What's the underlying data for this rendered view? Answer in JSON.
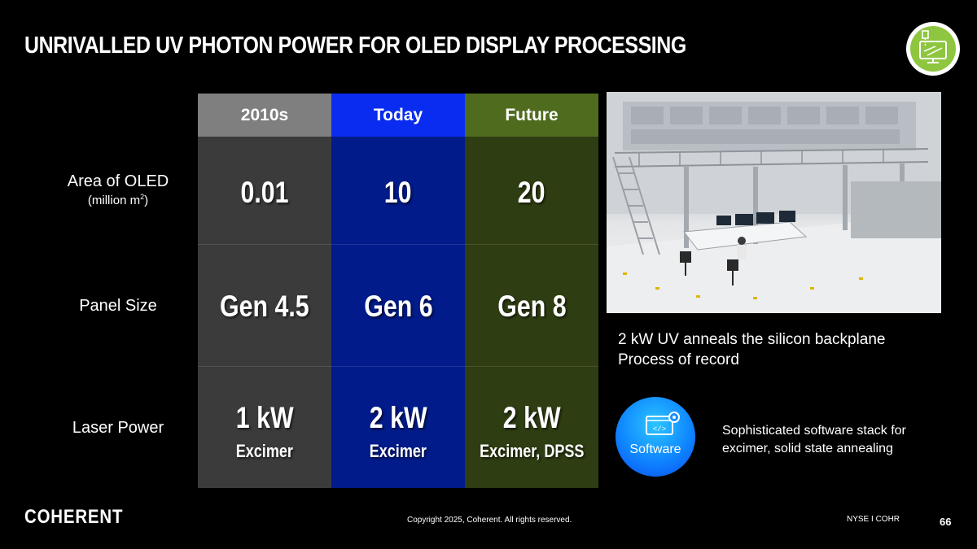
{
  "slide": {
    "title": "UNRIVALLED UV PHOTON POWER FOR OLED DISPLAY PROCESSING"
  },
  "table": {
    "columns": [
      "2010s",
      "Today",
      "Future"
    ],
    "column_colors": [
      "#7f7f7f",
      "#0a2cf0",
      "#4f6b1e"
    ],
    "rows": [
      {
        "label": "Area of OLED",
        "sublabel": "(million m",
        "sublabel_sup": "2",
        "sublabel_end": ")",
        "values": [
          "0.01",
          "10",
          "20"
        ]
      },
      {
        "label": "Panel Size",
        "values": [
          "Gen 4.5",
          "Gen 6",
          "Gen 8"
        ]
      },
      {
        "label": "Laser Power",
        "values": [
          "1 kW",
          "2 kW",
          "2 kW"
        ],
        "subvalues": [
          "Excimer",
          "Excimer",
          "Excimer, DPSS"
        ]
      }
    ]
  },
  "photo_caption": {
    "line1": "2 kW UV anneals the silicon backplane",
    "line2": "Process of record"
  },
  "software": {
    "label": "Software",
    "icon": "code-window-gear-icon",
    "text_line1": "Sophisticated software stack for",
    "text_line2": "excimer, solid state annealing"
  },
  "header_icon": "monitor-laser-icon",
  "footer": {
    "logo": "COHERENT",
    "copyright": "Copyright 2025, Coherent. All rights reserved.",
    "ticker": "NYSE I COHR",
    "page": "66"
  }
}
